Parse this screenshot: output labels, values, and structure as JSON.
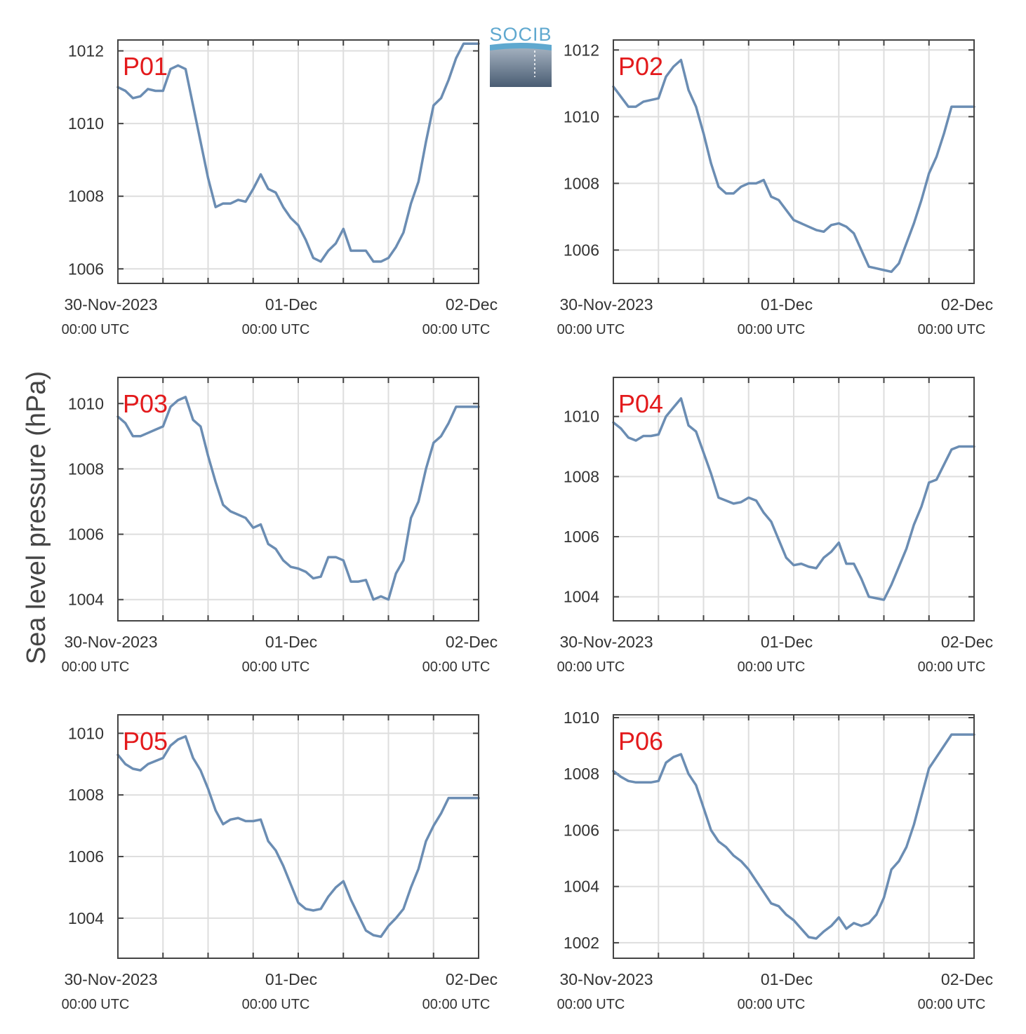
{
  "figure": {
    "ylabel": "Sea level pressure (hPa)",
    "logo_text": "SOCIB",
    "colors": {
      "line": "#6b8db3",
      "panel_label": "#e31a1c",
      "grid": "#dedede",
      "axis": "#444444"
    }
  },
  "chart_data": [
    {
      "type": "line",
      "panel_label": "P01",
      "xlabels": [
        "30-Nov-2023",
        "01-Dec",
        "02-Dec"
      ],
      "xsublabels": [
        "00:00 UTC",
        "00:00 UTC",
        "00:00 UTC"
      ],
      "xlim": [
        0,
        48
      ],
      "ylim": [
        1005.6,
        1012.3
      ],
      "yticks": [
        1006,
        1008,
        1010,
        1012
      ],
      "x": [
        0,
        1,
        2,
        3,
        4,
        5,
        6,
        7,
        8,
        9,
        10,
        11,
        12,
        13,
        14,
        15,
        16,
        17,
        18,
        19,
        20,
        21,
        22,
        23,
        24,
        25,
        26,
        27,
        28,
        29,
        30,
        31,
        32,
        33,
        34,
        35,
        36,
        37,
        38,
        39,
        40,
        41,
        42,
        43,
        44,
        45,
        46,
        47,
        48
      ],
      "y": [
        1011.0,
        1010.9,
        1010.7,
        1010.75,
        1010.95,
        1010.9,
        1010.9,
        1011.5,
        1011.6,
        1011.5,
        1010.5,
        1009.5,
        1008.5,
        1007.7,
        1007.8,
        1007.8,
        1007.9,
        1007.85,
        1008.2,
        1008.6,
        1008.2,
        1008.1,
        1007.7,
        1007.4,
        1007.2,
        1006.8,
        1006.3,
        1006.2,
        1006.5,
        1006.7,
        1007.1,
        1006.5,
        1006.5,
        1006.5,
        1006.2,
        1006.2,
        1006.3,
        1006.6,
        1007.0,
        1007.8,
        1008.4,
        1009.5,
        1010.5,
        1010.7,
        1011.2,
        1011.8,
        1012.2,
        1012.2,
        1012.2
      ]
    },
    {
      "type": "line",
      "panel_label": "P02",
      "xlabels": [
        "30-Nov-2023",
        "01-Dec",
        "02-Dec"
      ],
      "xsublabels": [
        "00:00 UTC",
        "00:00 UTC",
        "00:00 UTC"
      ],
      "xlim": [
        0,
        48
      ],
      "ylim": [
        1005.0,
        1012.3
      ],
      "yticks": [
        1006,
        1008,
        1010,
        1012
      ],
      "x": [
        0,
        1,
        2,
        3,
        4,
        5,
        6,
        7,
        8,
        9,
        10,
        11,
        12,
        13,
        14,
        15,
        16,
        17,
        18,
        19,
        20,
        21,
        22,
        23,
        24,
        25,
        26,
        27,
        28,
        29,
        30,
        31,
        32,
        33,
        34,
        35,
        36,
        37,
        38,
        39,
        40,
        41,
        42,
        43,
        44,
        45,
        46,
        47,
        48
      ],
      "y": [
        1010.9,
        1010.6,
        1010.3,
        1010.3,
        1010.45,
        1010.5,
        1010.55,
        1011.2,
        1011.5,
        1011.7,
        1010.8,
        1010.3,
        1009.5,
        1008.6,
        1007.9,
        1007.7,
        1007.7,
        1007.9,
        1008.0,
        1008.0,
        1008.1,
        1007.6,
        1007.5,
        1007.2,
        1006.9,
        1006.8,
        1006.7,
        1006.6,
        1006.55,
        1006.75,
        1006.8,
        1006.7,
        1006.5,
        1006.0,
        1005.5,
        1005.45,
        1005.4,
        1005.35,
        1005.6,
        1006.2,
        1006.8,
        1007.5,
        1008.3,
        1008.8,
        1009.5,
        1010.3,
        1010.3,
        1010.3,
        1010.3
      ]
    },
    {
      "type": "line",
      "panel_label": "P03",
      "xlabels": [
        "30-Nov-2023",
        "01-Dec",
        "02-Dec"
      ],
      "xsublabels": [
        "00:00 UTC",
        "00:00 UTC",
        "00:00 UTC"
      ],
      "xlim": [
        0,
        48
      ],
      "ylim": [
        1003.35,
        1010.8
      ],
      "yticks": [
        1004,
        1006,
        1008,
        1010
      ],
      "x": [
        0,
        1,
        2,
        3,
        4,
        5,
        6,
        7,
        8,
        9,
        10,
        11,
        12,
        13,
        14,
        15,
        16,
        17,
        18,
        19,
        20,
        21,
        22,
        23,
        24,
        25,
        26,
        27,
        28,
        29,
        30,
        31,
        32,
        33,
        34,
        35,
        36,
        37,
        38,
        39,
        40,
        41,
        42,
        43,
        44,
        45,
        46,
        47,
        48
      ],
      "y": [
        1009.6,
        1009.4,
        1009.0,
        1009.0,
        1009.1,
        1009.2,
        1009.3,
        1009.9,
        1010.1,
        1010.2,
        1009.5,
        1009.3,
        1008.4,
        1007.6,
        1006.9,
        1006.7,
        1006.6,
        1006.5,
        1006.2,
        1006.3,
        1005.7,
        1005.55,
        1005.2,
        1005.0,
        1004.95,
        1004.85,
        1004.65,
        1004.7,
        1005.3,
        1005.3,
        1005.2,
        1004.55,
        1004.55,
        1004.6,
        1004.0,
        1004.1,
        1004.0,
        1004.8,
        1005.2,
        1006.5,
        1007.0,
        1008.0,
        1008.8,
        1009.0,
        1009.4,
        1009.9,
        1009.9,
        1009.9,
        1009.9
      ]
    },
    {
      "type": "line",
      "panel_label": "P04",
      "xlabels": [
        "30-Nov-2023",
        "01-Dec",
        "02-Dec"
      ],
      "xsublabels": [
        "00:00 UTC",
        "00:00 UTC",
        "00:00 UTC"
      ],
      "xlim": [
        0,
        48
      ],
      "ylim": [
        1003.2,
        1011.3
      ],
      "yticks": [
        1004,
        1006,
        1008,
        1010
      ],
      "x": [
        0,
        1,
        2,
        3,
        4,
        5,
        6,
        7,
        8,
        9,
        10,
        11,
        12,
        13,
        14,
        15,
        16,
        17,
        18,
        19,
        20,
        21,
        22,
        23,
        24,
        25,
        26,
        27,
        28,
        29,
        30,
        31,
        32,
        33,
        34,
        35,
        36,
        37,
        38,
        39,
        40,
        41,
        42,
        43,
        44,
        45,
        46,
        47,
        48
      ],
      "y": [
        1009.8,
        1009.6,
        1009.3,
        1009.2,
        1009.35,
        1009.35,
        1009.4,
        1010.0,
        1010.3,
        1010.6,
        1009.7,
        1009.5,
        1008.8,
        1008.1,
        1007.3,
        1007.2,
        1007.1,
        1007.15,
        1007.3,
        1007.2,
        1006.8,
        1006.5,
        1005.9,
        1005.3,
        1005.05,
        1005.1,
        1005.0,
        1004.95,
        1005.3,
        1005.5,
        1005.8,
        1005.1,
        1005.1,
        1004.6,
        1004.0,
        1003.95,
        1003.9,
        1004.4,
        1005.0,
        1005.6,
        1006.4,
        1007.0,
        1007.8,
        1007.9,
        1008.4,
        1008.9,
        1009.0,
        1009.0,
        1009.0
      ]
    },
    {
      "type": "line",
      "panel_label": "P05",
      "xlabels": [
        "30-Nov-2023",
        "01-Dec",
        "02-Dec"
      ],
      "xsublabels": [
        "00:00 UTC",
        "00:00 UTC",
        "00:00 UTC"
      ],
      "xlim": [
        0,
        48
      ],
      "ylim": [
        1002.7,
        1010.6
      ],
      "yticks": [
        1004,
        1006,
        1008,
        1010
      ],
      "x": [
        0,
        1,
        2,
        3,
        4,
        5,
        6,
        7,
        8,
        9,
        10,
        11,
        12,
        13,
        14,
        15,
        16,
        17,
        18,
        19,
        20,
        21,
        22,
        23,
        24,
        25,
        26,
        27,
        28,
        29,
        30,
        31,
        32,
        33,
        34,
        35,
        36,
        37,
        38,
        39,
        40,
        41,
        42,
        43,
        44,
        45,
        46,
        47,
        48
      ],
      "y": [
        1009.3,
        1009.0,
        1008.85,
        1008.8,
        1009.0,
        1009.1,
        1009.2,
        1009.6,
        1009.8,
        1009.9,
        1009.2,
        1008.8,
        1008.2,
        1007.5,
        1007.05,
        1007.2,
        1007.25,
        1007.15,
        1007.15,
        1007.2,
        1006.5,
        1006.2,
        1005.7,
        1005.1,
        1004.5,
        1004.3,
        1004.25,
        1004.3,
        1004.7,
        1005.0,
        1005.2,
        1004.6,
        1004.1,
        1003.6,
        1003.45,
        1003.4,
        1003.75,
        1004.0,
        1004.3,
        1005.0,
        1005.6,
        1006.5,
        1007.0,
        1007.4,
        1007.9,
        1007.9,
        1007.9,
        1007.9,
        1007.9
      ]
    },
    {
      "type": "line",
      "panel_label": "P06",
      "xlabels": [
        "30-Nov-2023",
        "01-Dec",
        "02-Dec"
      ],
      "xsublabels": [
        "00:00 UTC",
        "00:00 UTC",
        "00:00 UTC"
      ],
      "xlim": [
        0,
        48
      ],
      "ylim": [
        1001.45,
        1010.1
      ],
      "yticks": [
        1002,
        1004,
        1006,
        1008,
        1010
      ],
      "x": [
        0,
        1,
        2,
        3,
        4,
        5,
        6,
        7,
        8,
        9,
        10,
        11,
        12,
        13,
        14,
        15,
        16,
        17,
        18,
        19,
        20,
        21,
        22,
        23,
        24,
        25,
        26,
        27,
        28,
        29,
        30,
        31,
        32,
        33,
        34,
        35,
        36,
        37,
        38,
        39,
        40,
        41,
        42,
        43,
        44,
        45,
        46,
        47,
        48
      ],
      "y": [
        1008.1,
        1007.9,
        1007.75,
        1007.7,
        1007.7,
        1007.7,
        1007.75,
        1008.4,
        1008.6,
        1008.7,
        1008.0,
        1007.6,
        1006.8,
        1006.0,
        1005.6,
        1005.4,
        1005.1,
        1004.9,
        1004.6,
        1004.2,
        1003.8,
        1003.4,
        1003.3,
        1003.0,
        1002.8,
        1002.5,
        1002.2,
        1002.15,
        1002.4,
        1002.6,
        1002.9,
        1002.5,
        1002.7,
        1002.6,
        1002.7,
        1003.0,
        1003.6,
        1004.6,
        1004.9,
        1005.4,
        1006.2,
        1007.2,
        1008.2,
        1008.6,
        1009.0,
        1009.4,
        1009.4,
        1009.4,
        1009.4
      ]
    }
  ]
}
